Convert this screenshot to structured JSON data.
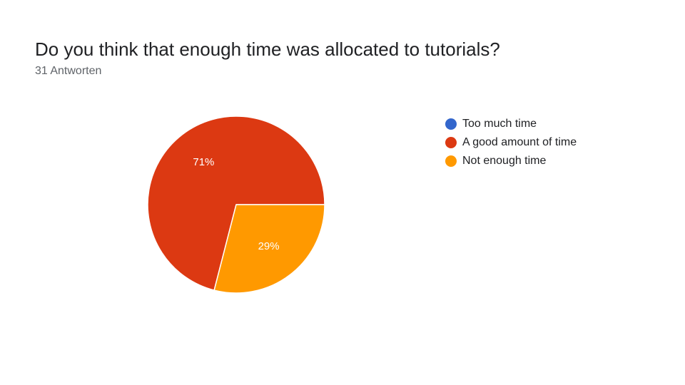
{
  "header": {
    "question": "Do you think that enough time was allocated to tutorials?",
    "response_count": "31 Antworten"
  },
  "chart_data": {
    "type": "pie",
    "categories": [
      "Too much time",
      "A good amount of time",
      "Not enough time"
    ],
    "values": [
      0,
      71,
      29
    ],
    "data_labels": [
      "",
      "71%",
      "29%"
    ],
    "colors": [
      "#3366cc",
      "#dc3912",
      "#ff9900"
    ],
    "legend_position": "right"
  }
}
